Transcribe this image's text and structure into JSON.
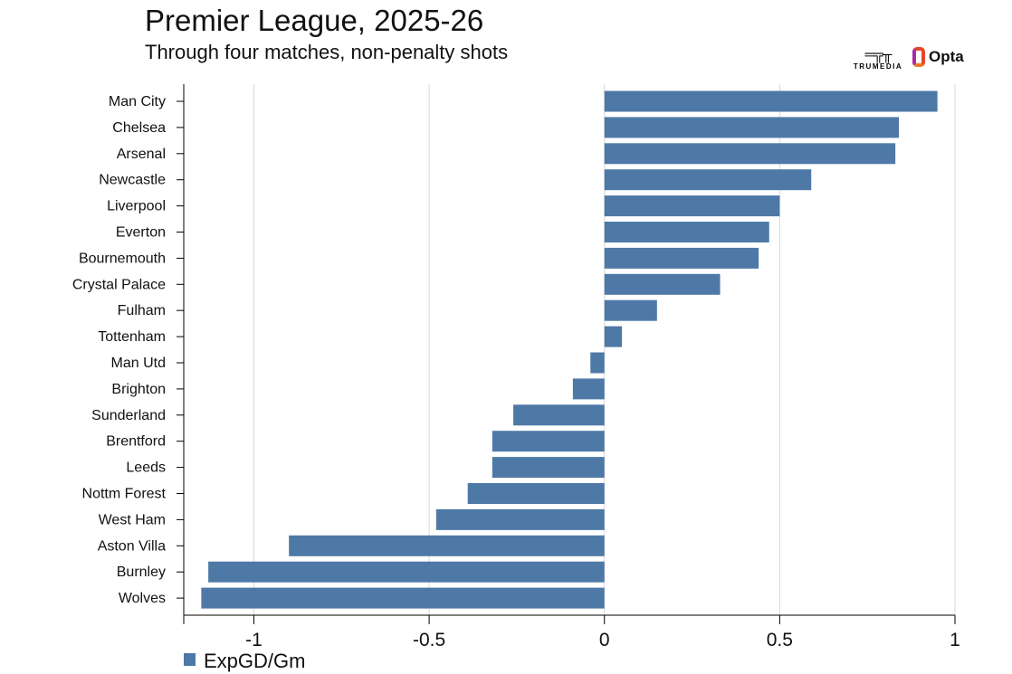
{
  "title": "Premier League, 2025-26",
  "subtitle": "Through four matches, non-penalty shots",
  "logos": {
    "trumedia": "TRUMEDIA",
    "opta": "Opta"
  },
  "chart_data": {
    "type": "bar",
    "orientation": "horizontal",
    "categories": [
      "Man City",
      "Chelsea",
      "Arsenal",
      "Newcastle",
      "Liverpool",
      "Everton",
      "Bournemouth",
      "Crystal Palace",
      "Fulham",
      "Tottenham",
      "Man Utd",
      "Brighton",
      "Sunderland",
      "Brentford",
      "Leeds",
      "Nottm Forest",
      "West Ham",
      "Aston Villa",
      "Burnley",
      "Wolves"
    ],
    "series": [
      {
        "name": "ExpGD/Gm",
        "values": [
          0.95,
          0.84,
          0.83,
          0.59,
          0.5,
          0.47,
          0.44,
          0.33,
          0.15,
          0.05,
          -0.04,
          -0.09,
          -0.26,
          -0.32,
          -0.32,
          -0.39,
          -0.48,
          -0.9,
          -1.13,
          -1.15
        ],
        "color": "#4e79a7"
      }
    ],
    "xlim": [
      -1.2,
      1.0
    ],
    "xticks": [
      -1,
      -0.5,
      0,
      0.5,
      1
    ],
    "xtick_labels": [
      "-1",
      "-0.5",
      "0",
      "0.5",
      "1"
    ],
    "grid": "vertical",
    "legend": "bottom-left"
  }
}
